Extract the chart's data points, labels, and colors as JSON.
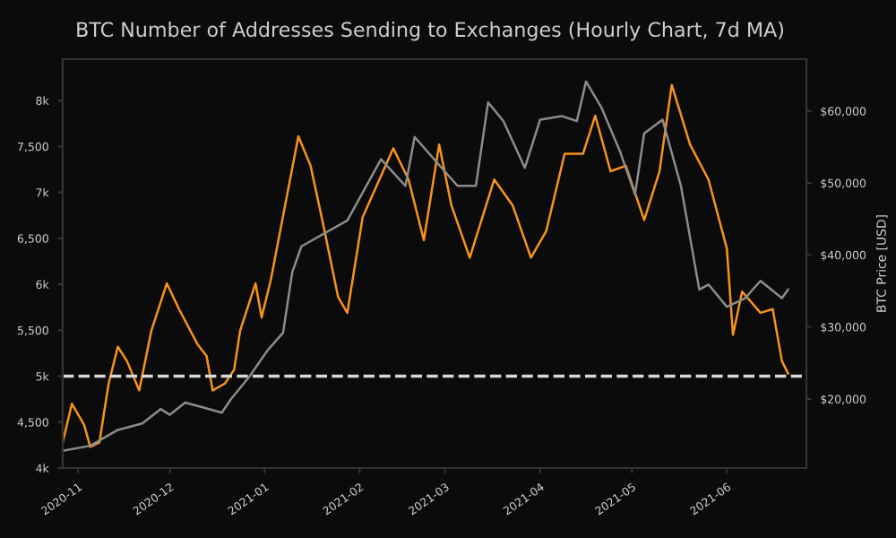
{
  "chart_data": {
    "type": "line",
    "title": "BTC Number of Addresses Sending to Exchanges (Hourly Chart, 7d MA)",
    "y2label": "BTC Price [USD]",
    "xlim": [
      "2020-10-27",
      "2021-06-27"
    ],
    "xticks": [
      {
        "value": "2020-11-01",
        "label": "2020-11"
      },
      {
        "value": "2020-12-01",
        "label": "2020-12"
      },
      {
        "value": "2021-01-01",
        "label": "2021-01"
      },
      {
        "value": "2021-02-01",
        "label": "2021-02"
      },
      {
        "value": "2021-03-01",
        "label": "2021-03"
      },
      {
        "value": "2021-04-01",
        "label": "2021-04"
      },
      {
        "value": "2021-05-01",
        "label": "2021-05"
      },
      {
        "value": "2021-06-01",
        "label": "2021-06"
      }
    ],
    "ylim": [
      4000,
      8450
    ],
    "yticks": [
      {
        "value": 4000,
        "label": "4k"
      },
      {
        "value": 4500,
        "label": "4,500"
      },
      {
        "value": 5000,
        "label": "5k"
      },
      {
        "value": 5500,
        "label": "5,500"
      },
      {
        "value": 6000,
        "label": "6k"
      },
      {
        "value": 6500,
        "label": "6,500"
      },
      {
        "value": 7000,
        "label": "7k"
      },
      {
        "value": 7500,
        "label": "7,500"
      },
      {
        "value": 8000,
        "label": "8k"
      }
    ],
    "y2lim": [
      10400,
      67200
    ],
    "y2ticks": [
      {
        "value": 20000,
        "label": "$20,000"
      },
      {
        "value": 30000,
        "label": "$30,000"
      },
      {
        "value": 40000,
        "label": "$40,000"
      },
      {
        "value": 50000,
        "label": "$50,000"
      },
      {
        "value": 60000,
        "label": "$60,000"
      }
    ],
    "grid": false,
    "legend": false,
    "ref_lines": [
      {
        "axis": "y",
        "value": 5000,
        "color": "#d8d8d8",
        "line_style": "dashed"
      }
    ],
    "series": [
      {
        "axis": "y2",
        "color": "#8c8c8c",
        "x": [
          "2020-10-27",
          "2020-11-05",
          "2020-11-14",
          "2020-11-22",
          "2020-11-28",
          "2020-12-01",
          "2020-12-06",
          "2020-12-12",
          "2020-12-18",
          "2020-12-21",
          "2020-12-27",
          "2021-01-02",
          "2021-01-07",
          "2021-01-10",
          "2021-01-13",
          "2021-01-28",
          "2021-02-08",
          "2021-02-16",
          "2021-02-19",
          "2021-02-27",
          "2021-03-05",
          "2021-03-11",
          "2021-03-15",
          "2021-03-20",
          "2021-03-27",
          "2021-04-01",
          "2021-04-08",
          "2021-04-13",
          "2021-04-16",
          "2021-04-21",
          "2021-04-27",
          "2021-05-02",
          "2021-05-05",
          "2021-05-11",
          "2021-05-17",
          "2021-05-20",
          "2021-05-23",
          "2021-05-26",
          "2021-06-01",
          "2021-06-07",
          "2021-06-12",
          "2021-06-19",
          "2021-06-21"
        ],
        "values": [
          12800,
          13500,
          15700,
          16600,
          18600,
          17800,
          19500,
          18800,
          18100,
          20000,
          23100,
          26800,
          29200,
          37600,
          41200,
          44800,
          53300,
          49600,
          56400,
          52500,
          49600,
          49600,
          61200,
          58600,
          52100,
          58800,
          59300,
          58600,
          64100,
          60500,
          54500,
          48400,
          56900,
          58800,
          49600,
          42400,
          35200,
          35900,
          32800,
          34000,
          36400,
          34000,
          35200
        ]
      },
      {
        "axis": "y",
        "color": "#f7931a",
        "x": [
          "2020-10-27",
          "2020-10-30",
          "2020-11-03",
          "2020-11-05",
          "2020-11-08",
          "2020-11-11",
          "2020-11-14",
          "2020-11-17",
          "2020-11-21",
          "2020-11-25",
          "2020-11-30",
          "2020-12-04",
          "2020-12-10",
          "2020-12-13",
          "2020-12-15",
          "2020-12-19",
          "2020-12-22",
          "2020-12-24",
          "2020-12-29",
          "2020-12-31",
          "2021-01-03",
          "2021-01-12",
          "2021-01-16",
          "2021-01-20",
          "2021-01-25",
          "2021-01-28",
          "2021-02-02",
          "2021-02-12",
          "2021-02-17",
          "2021-02-22",
          "2021-02-27",
          "2021-03-03",
          "2021-03-09",
          "2021-03-17",
          "2021-03-23",
          "2021-03-29",
          "2021-04-03",
          "2021-04-09",
          "2021-04-15",
          "2021-04-19",
          "2021-04-24",
          "2021-04-29",
          "2021-05-05",
          "2021-05-10",
          "2021-05-14",
          "2021-05-20",
          "2021-05-26",
          "2021-06-01",
          "2021-06-03",
          "2021-06-06",
          "2021-06-12",
          "2021-06-16",
          "2021-06-19",
          "2021-06-21"
        ],
        "values": [
          4280,
          4700,
          4470,
          4230,
          4280,
          4920,
          5320,
          5165,
          4845,
          5500,
          6010,
          5730,
          5350,
          5220,
          4845,
          4920,
          5070,
          5500,
          6010,
          5640,
          6050,
          7610,
          7290,
          6670,
          5860,
          5690,
          6730,
          7480,
          7140,
          6480,
          7520,
          6860,
          6290,
          7140,
          6860,
          6290,
          6580,
          7420,
          7420,
          7835,
          7230,
          7290,
          6700,
          7230,
          8170,
          7520,
          7140,
          6390,
          5450,
          5920,
          5690,
          5730,
          5165,
          5030
        ]
      }
    ]
  }
}
